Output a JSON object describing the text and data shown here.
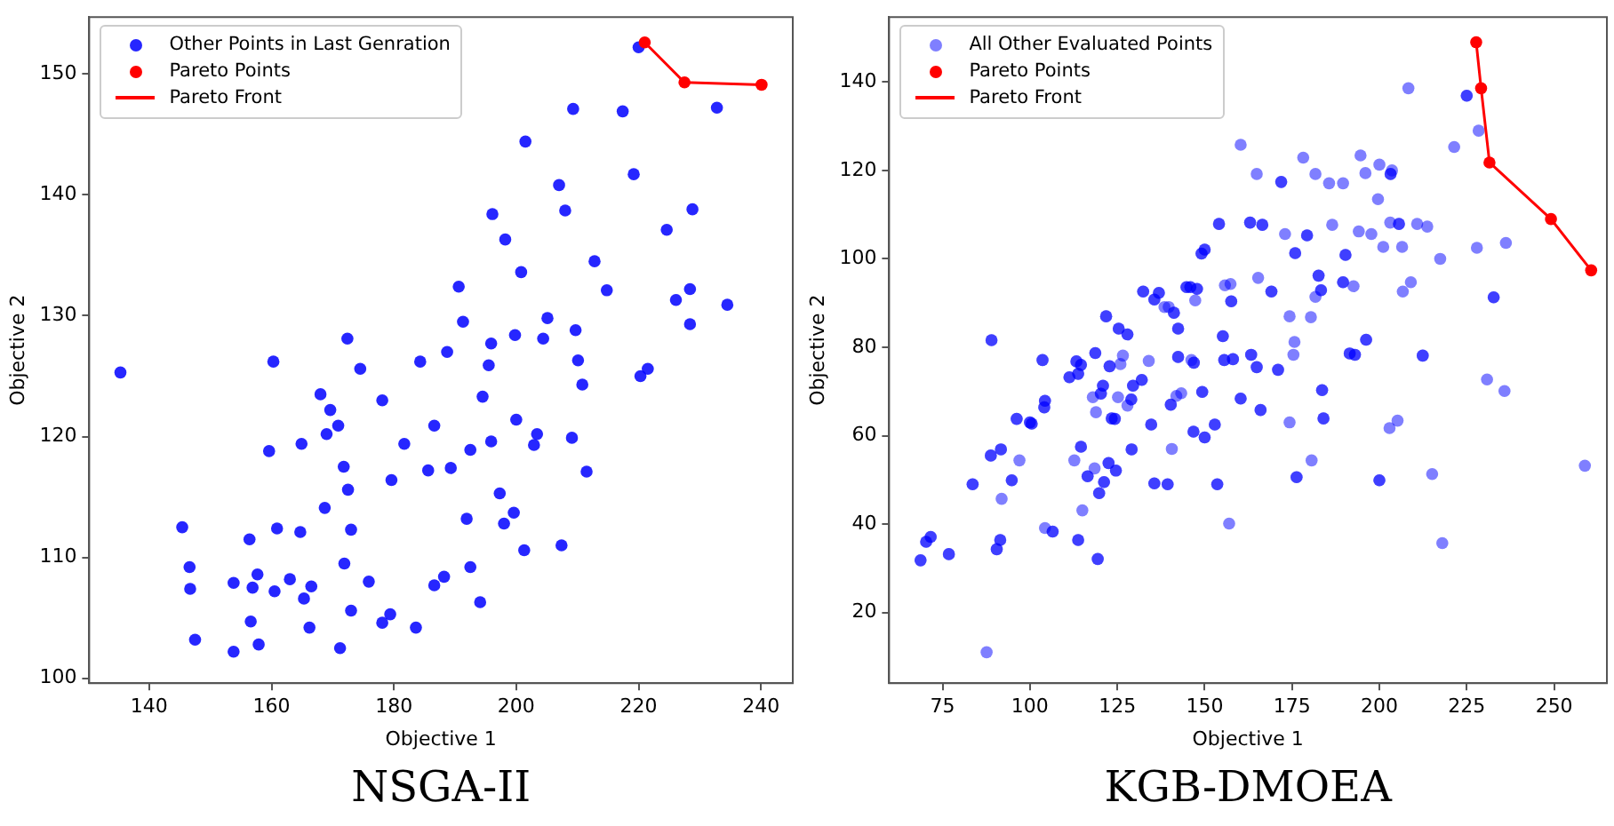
{
  "chart_data": [
    {
      "type": "scatter",
      "title": "NSGA-II",
      "xlabel": "Objective 1",
      "ylabel": "Objective 2",
      "xlim": [
        130.2,
        245.2
      ],
      "ylim": [
        99.6,
        154.7
      ],
      "xticks": [
        140,
        160,
        180,
        200,
        220,
        240
      ],
      "yticks": [
        100,
        110,
        120,
        130,
        140,
        150
      ],
      "legend": "top left",
      "marker": "circle",
      "series": [
        {
          "name": "Other Points in Last Genration",
          "color": "#0000ff",
          "x": [
            135.3,
            172.4,
            160.3,
            174.5,
            184.3,
            168.0,
            178.1,
            169.6,
            170.9,
            169.0,
            164.9,
            181.7,
            159.6,
            171.8,
            185.6,
            179.6,
            172.5,
            168.7,
            145.4,
            160.9,
            164.7,
            173.0,
            156.4,
            171.9,
            146.6,
            157.7,
            163.0,
            175.9,
            153.8,
            156.9,
            146.7,
            160.5,
            166.5,
            165.3,
            173.0,
            156.6,
            179.4,
            178.1,
            166.2,
            183.6,
            147.5,
            157.9,
            153.8,
            171.2,
            220.0,
            209.3,
            217.4,
            232.8,
            201.5,
            219.2,
            207.0,
            208.0,
            228.8,
            196.1,
            224.6,
            198.2,
            212.8,
            200.8,
            190.6,
            214.8,
            226.1,
            228.4,
            234.5,
            205.1,
            191.3,
            228.4,
            209.7,
            199.8,
            204.4,
            195.9,
            188.7,
            195.5,
            210.1,
            221.5,
            220.3,
            210.8,
            194.5,
            186.6,
            200.0,
            203.4,
            202.9,
            209.1,
            195.9,
            192.5,
            189.3,
            211.5,
            197.3,
            191.9,
            199.6,
            198.0,
            201.3,
            207.4,
            192.5,
            188.2,
            186.6,
            194.1
          ],
          "values": [
            125.3,
            128.1,
            126.2,
            125.6,
            126.2,
            123.5,
            123.0,
            122.2,
            120.9,
            120.2,
            119.4,
            119.4,
            118.8,
            117.5,
            117.2,
            116.4,
            115.6,
            114.1,
            112.5,
            112.4,
            112.1,
            112.3,
            111.5,
            109.5,
            109.2,
            108.6,
            108.2,
            108.0,
            107.9,
            107.5,
            107.4,
            107.2,
            107.6,
            106.6,
            105.6,
            104.7,
            105.3,
            104.6,
            104.2,
            104.2,
            103.2,
            102.8,
            102.2,
            102.5,
            152.2,
            147.1,
            146.9,
            147.2,
            144.4,
            141.7,
            140.8,
            138.7,
            138.8,
            138.4,
            137.1,
            136.3,
            134.5,
            133.6,
            132.4,
            132.1,
            131.3,
            132.2,
            130.9,
            129.8,
            129.5,
            129.3,
            128.8,
            128.4,
            128.1,
            127.7,
            127.0,
            125.9,
            126.3,
            125.6,
            125.0,
            124.3,
            123.3,
            120.9,
            121.4,
            120.2,
            119.3,
            119.9,
            119.6,
            118.9,
            117.4,
            117.1,
            115.3,
            113.2,
            113.7,
            112.8,
            110.6,
            111.0,
            109.2,
            108.4,
            107.7,
            106.3
          ]
        },
        {
          "name": "Pareto Points",
          "color": "#ff0000",
          "x": [
            221.0,
            227.5,
            240.1
          ],
          "values": [
            152.6,
            149.3,
            149.1
          ]
        },
        {
          "name": "Pareto Front",
          "type": "line",
          "marker": "none",
          "color": "#ff0000",
          "x": [
            221.0,
            227.5,
            240.1
          ],
          "values": [
            152.6,
            149.3,
            149.1
          ]
        }
      ]
    },
    {
      "type": "scatter",
      "title": "KGB-DMOEA",
      "xlabel": "Objective 1",
      "ylabel": "Objective 2",
      "xlim": [
        59.7,
        265.1
      ],
      "ylim": [
        4.0,
        154.7
      ],
      "xticks": [
        75,
        100,
        125,
        150,
        175,
        200,
        225,
        250
      ],
      "yticks": [
        20,
        40,
        60,
        80,
        100,
        120,
        140
      ],
      "legend": "top left",
      "marker": "circle",
      "series": [
        {
          "name": "All Other Evaluated Points",
          "color": "#0000ff",
          "x": [
            149.1,
            149.1,
            150.0,
            150.0,
            132.4,
            132.4,
            135.6,
            135.6,
            136.9,
            136.9,
            144.8,
            144.8,
            145.9,
            145.9,
            147.8,
            147.8,
            147.3,
            138.5,
            139.7,
            141.2,
            141.2,
            121.8,
            121.8,
            142.4,
            142.4,
            125.4,
            125.4,
            127.9,
            127.9,
            89.0,
            89.0,
            118.7,
            118.7,
            126.6,
            125.9,
            142.4,
            142.4,
            146.9,
            146.9,
            146.2,
            134.0,
            103.6,
            103.6,
            113.3,
            113.3,
            114.6,
            114.6,
            122.8,
            122.8,
            111.3,
            111.3,
            113.8,
            113.8,
            132.0,
            132.0,
            129.5,
            129.5,
            120.9,
            120.9,
            120.3,
            120.3,
            118.0,
            125.2,
            129.0,
            129.0,
            127.9,
            143.3,
            141.9,
            149.3,
            149.3,
            140.3,
            140.3,
            104.3,
            104.3,
            104.1,
            104.1,
            118.9,
            123.4,
            123.4,
            124.3,
            124.3,
            96.2,
            96.2,
            100.0,
            100.0,
            100.5,
            100.5,
            134.7,
            134.7,
            146.8,
            146.8,
            150.0,
            150.0,
            91.7,
            91.7,
            88.8,
            88.8,
            114.6,
            114.6,
            129.1,
            129.1,
            140.6,
            97.0,
            112.7,
            122.5,
            122.5,
            124.6,
            124.6,
            118.5,
            83.6,
            83.6,
            94.8,
            94.8,
            116.5,
            116.5,
            121.2,
            121.2,
            135.6,
            135.6,
            139.4,
            139.4,
            153.6,
            153.6,
            119.8,
            119.8,
            91.9,
            115.0,
            104.3,
            106.5,
            106.5,
            70.3,
            70.3,
            71.6,
            71.6,
            91.5,
            91.5,
            90.5,
            90.5,
            113.8,
            113.8,
            76.8,
            76.8,
            68.7,
            68.7,
            119.4,
            119.4,
            87.6,
            208.3,
            225.0,
            225.0,
            228.4,
            160.3,
            221.4,
            178.2,
            194.6,
            164.9,
            181.7,
            196.0,
            200.0,
            203.2,
            203.2,
            203.6,
            171.9,
            171.9,
            185.6,
            189.6,
            199.6,
            154.1,
            154.1,
            163.0,
            163.0,
            166.5,
            166.5,
            186.5,
            203.1,
            205.6,
            205.6,
            210.8,
            213.7,
            173.0,
            179.3,
            179.3,
            194.1,
            197.7,
            201.1,
            206.5,
            175.9,
            175.9,
            190.3,
            190.3,
            217.4,
            227.9,
            236.2,
            165.3,
            155.8,
            157.4,
            182.6,
            182.6,
            157.6,
            157.6,
            169.1,
            169.1,
            183.3,
            183.3,
            181.7,
            189.6,
            189.6,
            192.6,
            206.7,
            209.0,
            232.7,
            232.7,
            174.3,
            180.4,
            155.2,
            155.2,
            175.7,
            175.4,
            155.6,
            155.6,
            158.1,
            158.1,
            163.3,
            163.3,
            164.9,
            164.9,
            171.0,
            171.0,
            191.5,
            191.5,
            193.0,
            193.0,
            196.2,
            196.2,
            212.4,
            212.4,
            183.6,
            183.6,
            160.3,
            160.3,
            166.0,
            166.0,
            184.0,
            184.0,
            174.3,
            202.9,
            205.2,
            230.8,
            235.8,
            180.6,
            176.3,
            176.3,
            200.0,
            200.0,
            215.1,
            258.8,
            157.0,
            218.0,
            152.9,
            152.9
          ],
          "values": [
            101.2,
            101.2,
            102.1,
            102.1,
            92.6,
            92.6,
            90.8,
            90.8,
            92.3,
            92.3,
            93.6,
            93.6,
            93.6,
            93.6,
            93.2,
            93.2,
            90.6,
            89.1,
            89.1,
            87.8,
            87.8,
            87.0,
            87.0,
            84.2,
            84.2,
            84.2,
            84.2,
            82.9,
            82.9,
            81.6,
            81.6,
            78.7,
            78.7,
            78.1,
            76.2,
            77.8,
            77.8,
            76.5,
            76.5,
            77.1,
            76.9,
            77.1,
            77.1,
            76.8,
            76.8,
            76.0,
            76.0,
            75.7,
            75.7,
            73.2,
            73.2,
            74.0,
            74.0,
            72.6,
            72.6,
            71.3,
            71.3,
            71.3,
            71.3,
            69.5,
            69.5,
            68.7,
            68.7,
            68.2,
            68.2,
            66.8,
            69.6,
            69.0,
            69.9,
            69.9,
            67.0,
            67.0,
            67.9,
            67.9,
            66.4,
            66.4,
            65.3,
            63.9,
            63.9,
            63.8,
            63.8,
            63.8,
            63.8,
            63.0,
            63.0,
            62.7,
            62.7,
            62.5,
            62.5,
            60.9,
            60.9,
            59.6,
            59.6,
            56.9,
            56.9,
            55.5,
            55.5,
            57.5,
            57.5,
            56.9,
            56.9,
            57.0,
            54.4,
            54.4,
            53.8,
            53.8,
            52.1,
            52.1,
            52.6,
            49.0,
            49.0,
            49.9,
            49.9,
            50.8,
            50.8,
            49.5,
            49.5,
            49.2,
            49.2,
            49.0,
            49.0,
            49.0,
            49.0,
            47.0,
            47.0,
            45.7,
            43.1,
            39.1,
            38.3,
            38.3,
            36.0,
            36.0,
            37.1,
            37.1,
            36.4,
            36.4,
            34.3,
            34.3,
            36.4,
            36.4,
            33.2,
            33.2,
            31.8,
            31.8,
            32.1,
            32.1,
            11.0,
            138.6,
            136.9,
            136.9,
            129.0,
            125.8,
            125.3,
            122.9,
            123.4,
            119.2,
            119.2,
            119.4,
            121.3,
            119.2,
            119.2,
            120.0,
            117.4,
            117.4,
            117.1,
            117.1,
            113.5,
            107.9,
            107.9,
            108.2,
            108.2,
            107.7,
            107.7,
            107.7,
            108.2,
            107.9,
            107.9,
            107.9,
            107.3,
            105.6,
            105.3,
            105.3,
            106.2,
            105.6,
            102.7,
            102.7,
            101.3,
            101.3,
            100.9,
            100.9,
            100.0,
            102.5,
            103.6,
            95.7,
            94.0,
            94.3,
            96.2,
            96.2,
            90.4,
            90.4,
            92.6,
            92.6,
            92.9,
            92.9,
            91.4,
            94.7,
            94.7,
            93.8,
            92.6,
            94.7,
            91.3,
            91.3,
            87.0,
            86.8,
            82.5,
            82.5,
            81.2,
            78.3,
            77.1,
            77.1,
            77.3,
            77.3,
            78.3,
            78.3,
            75.5,
            75.5,
            74.9,
            74.9,
            78.6,
            78.6,
            78.3,
            78.3,
            81.7,
            81.7,
            78.1,
            78.1,
            70.3,
            70.3,
            68.4,
            68.4,
            65.8,
            65.8,
            63.9,
            63.9,
            63.0,
            61.7,
            63.4,
            72.7,
            70.1,
            54.4,
            50.6,
            50.6,
            49.9,
            49.9,
            51.3,
            53.2,
            40.1,
            35.7,
            62.5,
            62.5
          ]
        },
        {
          "name": "Pareto Points",
          "color": "#ff0000",
          "x": [
            227.7,
            229.1,
            231.5,
            249.1,
            260.6
          ],
          "values": [
            149.0,
            138.6,
            121.8,
            109.0,
            97.4
          ]
        },
        {
          "name": "Pareto Front",
          "type": "line",
          "marker": "none",
          "color": "#ff0000",
          "x": [
            227.7,
            229.1,
            231.5,
            249.1,
            260.6
          ],
          "values": [
            149.0,
            138.6,
            121.8,
            109.0,
            97.4
          ]
        }
      ]
    }
  ]
}
